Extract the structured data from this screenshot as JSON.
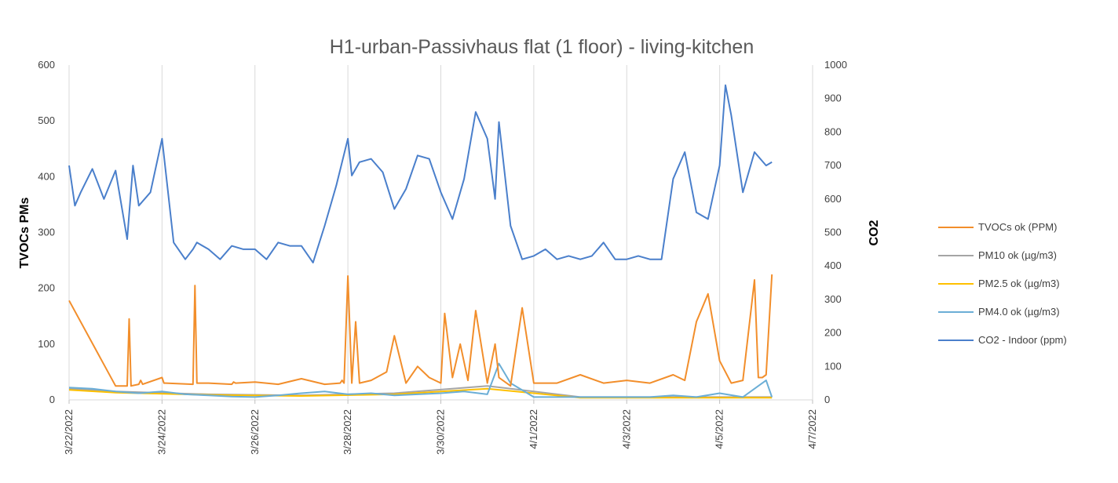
{
  "chart_data": {
    "type": "line",
    "title": "H1-urban-Passivhaus flat (1 floor) - living-kitchen",
    "ylabel_left": "TVOCs PMs",
    "ylabel_right": "CO2",
    "ylim_left": [
      0,
      600
    ],
    "ylim_right": [
      0,
      1000
    ],
    "yticks_left": [
      "0",
      "100",
      "200",
      "300",
      "400",
      "500",
      "600"
    ],
    "yticks_right": [
      "0",
      "100",
      "200",
      "300",
      "400",
      "500",
      "600",
      "700",
      "800",
      "900",
      "1000"
    ],
    "x_range": [
      "2022-03-22",
      "2022-04-07"
    ],
    "x_ticks": [
      "3/22/2022",
      "3/24/2022",
      "3/26/2022",
      "3/28/2022",
      "3/30/2022",
      "4/1/2022",
      "4/3/2022",
      "4/5/2022",
      "4/7/2022"
    ],
    "grid": "vertical",
    "legend_position": "right",
    "series": [
      {
        "name": "TVOCs ok (PPM)",
        "color": "#f28e2b",
        "axis": "left",
        "x": [
          "2022-03-22",
          "2022-03-23",
          "2022-03-23T06",
          "2022-03-23T07",
          "2022-03-23T08",
          "2022-03-23T12",
          "2022-03-23T13",
          "2022-03-23T14",
          "2022-03-24",
          "2022-03-24T01",
          "2022-03-24T02",
          "2022-03-24T16",
          "2022-03-24T17",
          "2022-03-24T18",
          "2022-03-25",
          "2022-03-25T12",
          "2022-03-25T13",
          "2022-03-25T14",
          "2022-03-26",
          "2022-03-26T12",
          "2022-03-27",
          "2022-03-27T12",
          "2022-03-27T20",
          "2022-03-27T21",
          "2022-03-27T22",
          "2022-03-28",
          "2022-03-28T02",
          "2022-03-28T04",
          "2022-03-28T06",
          "2022-03-28T12",
          "2022-03-28T20",
          "2022-03-29",
          "2022-03-29T06",
          "2022-03-29T12",
          "2022-03-29T18",
          "2022-03-30",
          "2022-03-30T02",
          "2022-03-30T06",
          "2022-03-30T10",
          "2022-03-30T14",
          "2022-03-30T18",
          "2022-03-31",
          "2022-03-31T04",
          "2022-03-31T06",
          "2022-03-31T12",
          "2022-03-31T18",
          "2022-04-01",
          "2022-04-01T12",
          "2022-04-02",
          "2022-04-02T12",
          "2022-04-03",
          "2022-04-03T12",
          "2022-04-04",
          "2022-04-04T06",
          "2022-04-04T12",
          "2022-04-04T18",
          "2022-04-05",
          "2022-04-05T06",
          "2022-04-05T12",
          "2022-04-05T18",
          "2022-04-05T20",
          "2022-04-05T22",
          "2022-04-06",
          "2022-04-06T03"
        ],
        "values": [
          178,
          25,
          25,
          145,
          25,
          28,
          35,
          28,
          40,
          30,
          30,
          28,
          205,
          30,
          30,
          28,
          32,
          30,
          32,
          28,
          38,
          28,
          30,
          35,
          30,
          222,
          30,
          140,
          30,
          35,
          50,
          115,
          30,
          60,
          40,
          30,
          155,
          40,
          100,
          35,
          160,
          30,
          100,
          40,
          25,
          165,
          30,
          30,
          45,
          30,
          35,
          30,
          45,
          35,
          140,
          190,
          70,
          30,
          35,
          215,
          40,
          40,
          45,
          225
        ]
      },
      {
        "name": "PM10 ok (µg/m3)",
        "color": "#a5a5a5",
        "axis": "left",
        "x": [
          "2022-03-22",
          "2022-03-23",
          "2022-03-25",
          "2022-03-27",
          "2022-03-29",
          "2022-03-31",
          "2022-04-02",
          "2022-04-04",
          "2022-04-06T03"
        ],
        "values": [
          20,
          15,
          10,
          8,
          12,
          25,
          5,
          5,
          5
        ]
      },
      {
        "name": "PM2.5 ok (µg/m3)",
        "color": "#ffc000",
        "axis": "left",
        "x": [
          "2022-03-22",
          "2022-03-23",
          "2022-03-25",
          "2022-03-27",
          "2022-03-29",
          "2022-03-31",
          "2022-04-02",
          "2022-04-04",
          "2022-04-06T03"
        ],
        "values": [
          18,
          13,
          9,
          7,
          10,
          20,
          4,
          4,
          4
        ]
      },
      {
        "name": "PM4.0 ok (µg/m3)",
        "color": "#6baed6",
        "axis": "left",
        "x": [
          "2022-03-22",
          "2022-03-22T12",
          "2022-03-23",
          "2022-03-23T12",
          "2022-03-24",
          "2022-03-24T12",
          "2022-03-25",
          "2022-03-25T12",
          "2022-03-26",
          "2022-03-26T12",
          "2022-03-27",
          "2022-03-27T12",
          "2022-03-28",
          "2022-03-28T12",
          "2022-03-29",
          "2022-03-29T12",
          "2022-03-30",
          "2022-03-30T12",
          "2022-03-31",
          "2022-03-31T06",
          "2022-03-31T12",
          "2022-04-01",
          "2022-04-01T12",
          "2022-04-02",
          "2022-04-02T12",
          "2022-04-03",
          "2022-04-03T12",
          "2022-04-04",
          "2022-04-04T12",
          "2022-04-05",
          "2022-04-05T12",
          "2022-04-06",
          "2022-04-06T03"
        ],
        "values": [
          22,
          20,
          15,
          12,
          15,
          10,
          8,
          6,
          5,
          8,
          12,
          15,
          10,
          12,
          8,
          10,
          12,
          15,
          10,
          65,
          30,
          5,
          5,
          5,
          5,
          5,
          5,
          8,
          5,
          12,
          5,
          35,
          5
        ]
      },
      {
        "name": "CO2 - Indoor (ppm)",
        "color": "#4a7fcb",
        "axis": "right",
        "x": [
          "2022-03-22",
          "2022-03-22T03",
          "2022-03-22T06",
          "2022-03-22T12",
          "2022-03-22T18",
          "2022-03-23",
          "2022-03-23T06",
          "2022-03-23T09",
          "2022-03-23T12",
          "2022-03-23T18",
          "2022-03-24",
          "2022-03-24T06",
          "2022-03-24T12",
          "2022-03-24T16",
          "2022-03-24T18",
          "2022-03-25",
          "2022-03-25T06",
          "2022-03-25T12",
          "2022-03-25T18",
          "2022-03-26",
          "2022-03-26T06",
          "2022-03-26T12",
          "2022-03-26T18",
          "2022-03-27",
          "2022-03-27T06",
          "2022-03-27T12",
          "2022-03-27T18",
          "2022-03-28",
          "2022-03-28T02",
          "2022-03-28T06",
          "2022-03-28T12",
          "2022-03-28T18",
          "2022-03-29",
          "2022-03-29T06",
          "2022-03-29T12",
          "2022-03-29T18",
          "2022-03-30",
          "2022-03-30T06",
          "2022-03-30T12",
          "2022-03-30T18",
          "2022-03-31",
          "2022-03-31T04",
          "2022-03-31T06",
          "2022-03-31T12",
          "2022-03-31T18",
          "2022-04-01",
          "2022-04-01T06",
          "2022-04-01T12",
          "2022-04-01T18",
          "2022-04-02",
          "2022-04-02T06",
          "2022-04-02T12",
          "2022-04-02T18",
          "2022-04-03",
          "2022-04-03T06",
          "2022-04-03T12",
          "2022-04-03T18",
          "2022-04-04",
          "2022-04-04T06",
          "2022-04-04T12",
          "2022-04-04T18",
          "2022-04-05",
          "2022-04-05T03",
          "2022-04-05T06",
          "2022-04-05T12",
          "2022-04-05T18",
          "2022-04-06",
          "2022-04-06T03"
        ],
        "values": [
          700,
          580,
          620,
          690,
          600,
          685,
          480,
          700,
          580,
          620,
          780,
          470,
          420,
          450,
          470,
          450,
          420,
          460,
          450,
          450,
          420,
          470,
          460,
          460,
          410,
          520,
          640,
          780,
          670,
          710,
          720,
          680,
          570,
          630,
          730,
          720,
          620,
          540,
          660,
          860,
          780,
          600,
          830,
          520,
          420,
          430,
          450,
          420,
          430,
          420,
          430,
          470,
          420,
          420,
          430,
          420,
          420,
          660,
          740,
          560,
          540,
          700,
          940,
          850,
          620,
          740,
          700,
          710
        ]
      }
    ]
  }
}
